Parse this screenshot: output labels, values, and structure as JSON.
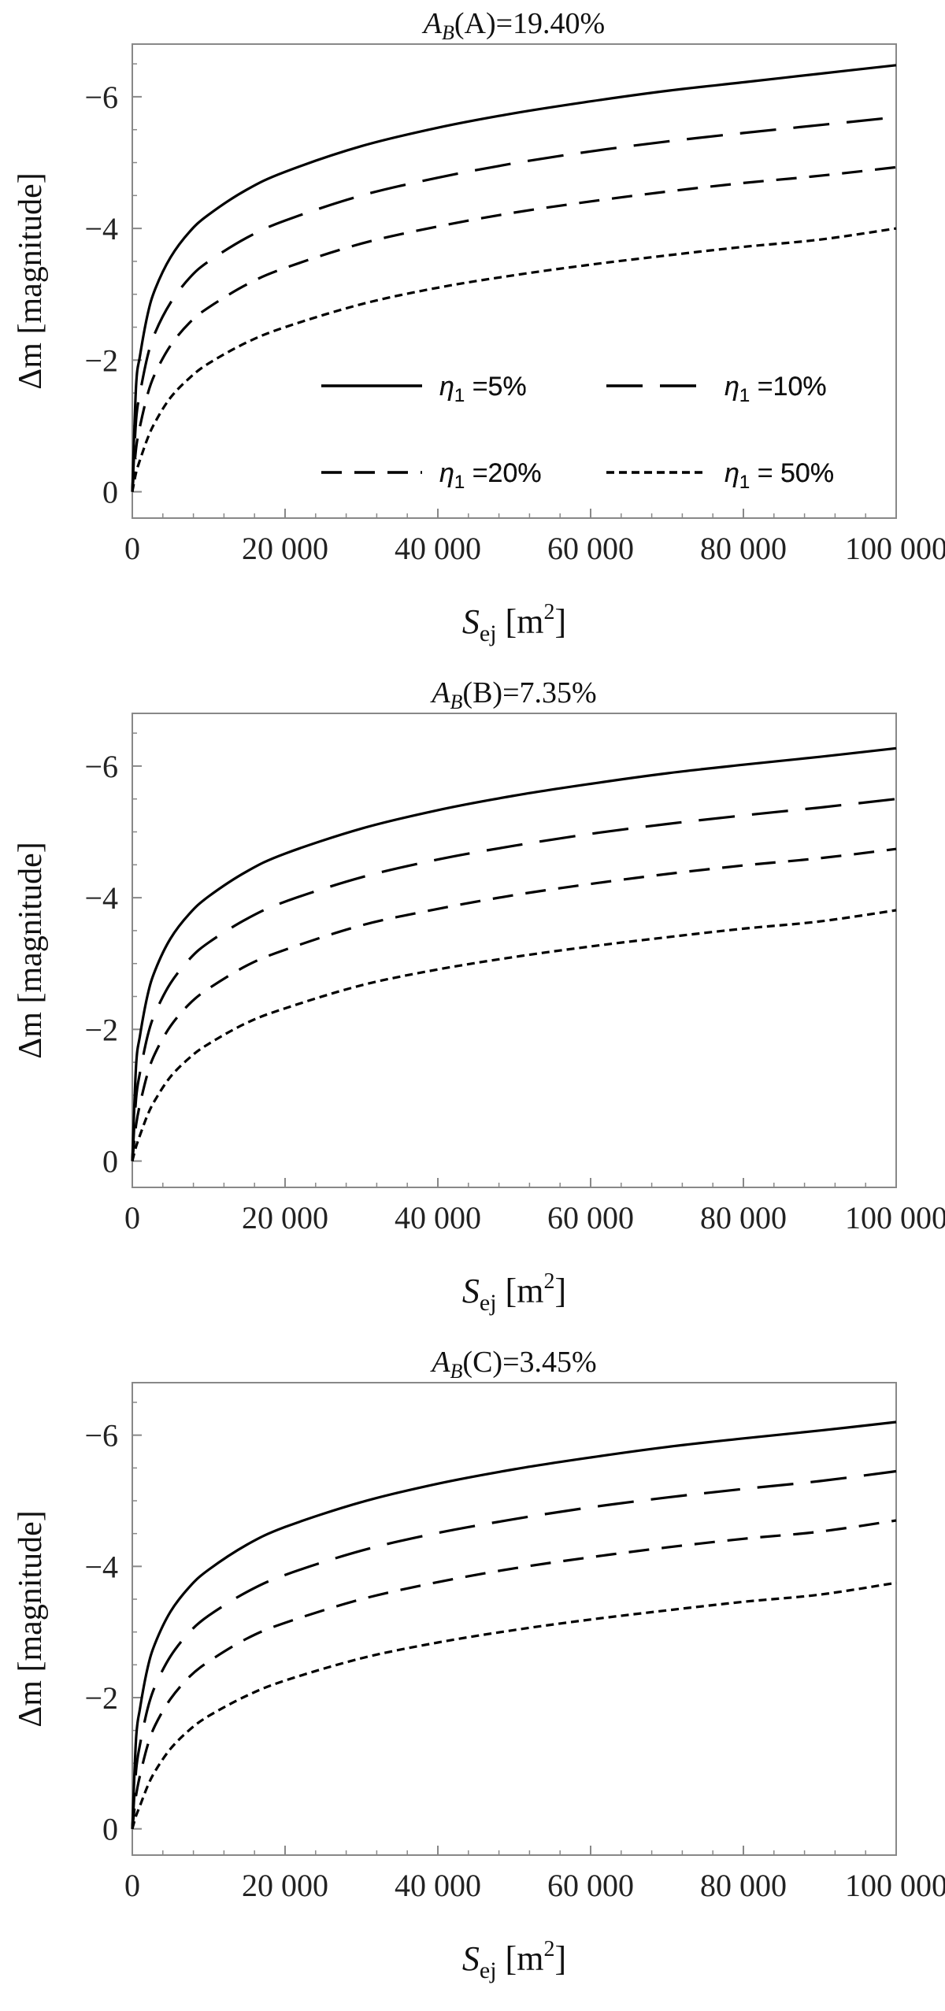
{
  "chart_data": [
    {
      "type": "line",
      "title": {
        "prefix": "A",
        "prefix_sub": "B",
        "rest": "(A)=19.40%"
      },
      "xlabel": {
        "main": "S",
        "sub": "ej",
        "unit": "[m",
        "unit_sup": "2",
        "unit_close": "]"
      },
      "ylabel": "Δm [magnitude]",
      "xlim": [
        0,
        100000
      ],
      "ylim": [
        0.4,
        -6.8
      ],
      "y_reversed": true,
      "x_ticks": [
        {
          "v": 0,
          "label": "0"
        },
        {
          "v": 20000,
          "label": "20 000"
        },
        {
          "v": 40000,
          "label": "40 000"
        },
        {
          "v": 60000,
          "label": "60 000"
        },
        {
          "v": 80000,
          "label": "80 000"
        },
        {
          "v": 100000,
          "label": "100 000"
        }
      ],
      "y_ticks": [
        {
          "v": 0,
          "label": "0"
        },
        {
          "v": -2,
          "label": "−2"
        },
        {
          "v": -4,
          "label": "−4"
        },
        {
          "v": -6,
          "label": "−6"
        }
      ],
      "grid": false,
      "legend_position": "bottom-right",
      "x": [
        0,
        500,
        1000,
        2000,
        3000,
        5000,
        7500,
        10000,
        15000,
        20000,
        30000,
        40000,
        50000,
        60000,
        70000,
        80000,
        90000,
        100000
      ],
      "series": [
        {
          "name": {
            "sym": "η",
            "sub": "1",
            "text": " =5%"
          },
          "style": "solid",
          "values": [
            0,
            -1.61,
            -2.06,
            -2.69,
            -3.08,
            -3.56,
            -3.95,
            -4.21,
            -4.59,
            -4.86,
            -5.25,
            -5.53,
            -5.75,
            -5.93,
            -6.09,
            -6.22,
            -6.35,
            -6.48
          ]
        },
        {
          "name": {
            "sym": "η",
            "sub": "1",
            "text": " =10%"
          },
          "style": "longdash",
          "values": [
            0,
            -1.09,
            -1.49,
            -2.06,
            -2.42,
            -2.87,
            -3.25,
            -3.5,
            -3.86,
            -4.12,
            -4.5,
            -4.77,
            -4.99,
            -5.17,
            -5.32,
            -5.45,
            -5.57,
            -5.69
          ]
        },
        {
          "name": {
            "sym": "η",
            "sub": "1",
            "text": " =20%"
          },
          "style": "dash",
          "values": [
            0,
            -0.66,
            -0.99,
            -1.48,
            -1.8,
            -2.22,
            -2.57,
            -2.8,
            -3.15,
            -3.4,
            -3.77,
            -4.03,
            -4.24,
            -4.41,
            -4.56,
            -4.69,
            -4.8,
            -4.93
          ]
        },
        {
          "name": {
            "sym": "η",
            "sub": "1",
            "text": " = 50%"
          },
          "style": "shortdash",
          "values": [
            0,
            -0.29,
            -0.48,
            -0.81,
            -1.06,
            -1.43,
            -1.73,
            -1.95,
            -2.27,
            -2.5,
            -2.85,
            -3.1,
            -3.29,
            -3.45,
            -3.59,
            -3.72,
            -3.83,
            -4.0
          ]
        }
      ]
    },
    {
      "type": "line",
      "title": {
        "prefix": "A",
        "prefix_sub": "B",
        "rest": "(B)=7.35%"
      },
      "xlabel": {
        "main": "S",
        "sub": "ej",
        "unit": "[m",
        "unit_sup": "2",
        "unit_close": "]"
      },
      "ylabel": "Δm [magnitude]",
      "xlim": [
        0,
        100000
      ],
      "ylim": [
        0.4,
        -6.8
      ],
      "y_reversed": true,
      "x_ticks": [
        {
          "v": 0,
          "label": "0"
        },
        {
          "v": 20000,
          "label": "20 000"
        },
        {
          "v": 40000,
          "label": "40 000"
        },
        {
          "v": 60000,
          "label": "60 000"
        },
        {
          "v": 80000,
          "label": "80 000"
        },
        {
          "v": 100000,
          "label": "100 000"
        }
      ],
      "y_ticks": [
        {
          "v": 0,
          "label": "0"
        },
        {
          "v": -2,
          "label": "−2"
        },
        {
          "v": -4,
          "label": "−4"
        },
        {
          "v": -6,
          "label": "−6"
        }
      ],
      "grid": false,
      "legend_position": "bottom-right",
      "x": [
        0,
        500,
        1000,
        2000,
        3000,
        5000,
        7500,
        10000,
        15000,
        20000,
        30000,
        40000,
        50000,
        60000,
        70000,
        80000,
        90000,
        100000
      ],
      "series": [
        {
          "name": {
            "sym": "η",
            "sub": "1",
            "text": " =5%"
          },
          "style": "solid",
          "values": [
            0,
            -1.45,
            -1.9,
            -2.52,
            -2.9,
            -3.38,
            -3.76,
            -4.02,
            -4.4,
            -4.67,
            -5.05,
            -5.33,
            -5.55,
            -5.73,
            -5.89,
            -6.02,
            -6.14,
            -6.27
          ]
        },
        {
          "name": {
            "sym": "η",
            "sub": "1",
            "text": " =10%"
          },
          "style": "longdash",
          "values": [
            0,
            -0.95,
            -1.34,
            -1.9,
            -2.25,
            -2.7,
            -3.07,
            -3.32,
            -3.68,
            -3.94,
            -4.31,
            -4.58,
            -4.79,
            -4.97,
            -5.12,
            -5.25,
            -5.37,
            -5.5
          ]
        },
        {
          "name": {
            "sym": "η",
            "sub": "1",
            "text": " =20%"
          },
          "style": "dash",
          "values": [
            0,
            -0.55,
            -0.86,
            -1.33,
            -1.64,
            -2.05,
            -2.39,
            -2.62,
            -2.97,
            -3.21,
            -3.58,
            -3.83,
            -4.04,
            -4.21,
            -4.36,
            -4.49,
            -4.6,
            -4.74
          ]
        },
        {
          "name": {
            "sym": "η",
            "sub": "1",
            "text": " = 50%"
          },
          "style": "shortdash",
          "values": [
            0,
            -0.22,
            -0.39,
            -0.7,
            -0.93,
            -1.28,
            -1.57,
            -1.78,
            -2.1,
            -2.32,
            -2.67,
            -2.91,
            -3.1,
            -3.26,
            -3.4,
            -3.53,
            -3.64,
            -3.81
          ]
        }
      ]
    },
    {
      "type": "line",
      "title": {
        "prefix": "A",
        "prefix_sub": "B",
        "rest": "(C)=3.45%"
      },
      "xlabel": {
        "main": "S",
        "sub": "ej",
        "unit": "[m",
        "unit_sup": "2",
        "unit_close": "]"
      },
      "ylabel": "Δm [magnitude]",
      "xlim": [
        0,
        100000
      ],
      "ylim": [
        0.4,
        -6.8
      ],
      "y_reversed": true,
      "x_ticks": [
        {
          "v": 0,
          "label": "0"
        },
        {
          "v": 20000,
          "label": "20 000"
        },
        {
          "v": 40000,
          "label": "40 000"
        },
        {
          "v": 60000,
          "label": "60 000"
        },
        {
          "v": 80000,
          "label": "80 000"
        },
        {
          "v": 100000,
          "label": "100 000"
        }
      ],
      "y_ticks": [
        {
          "v": 0,
          "label": "0"
        },
        {
          "v": -2,
          "label": "−2"
        },
        {
          "v": -4,
          "label": "−4"
        },
        {
          "v": -6,
          "label": "−6"
        }
      ],
      "grid": false,
      "legend_position": "bottom-right",
      "x": [
        0,
        500,
        1000,
        2000,
        3000,
        5000,
        7500,
        10000,
        15000,
        20000,
        30000,
        40000,
        50000,
        60000,
        70000,
        80000,
        90000,
        100000
      ],
      "series": [
        {
          "name": {
            "sym": "η",
            "sub": "1",
            "text": " =5%"
          },
          "style": "solid",
          "values": [
            0,
            -1.38,
            -1.83,
            -2.45,
            -2.83,
            -3.31,
            -3.69,
            -3.95,
            -4.33,
            -4.6,
            -4.98,
            -5.26,
            -5.48,
            -5.66,
            -5.82,
            -5.95,
            -6.07,
            -6.2
          ]
        },
        {
          "name": {
            "sym": "η",
            "sub": "1",
            "text": " =10%"
          },
          "style": "longdash",
          "values": [
            0,
            -0.89,
            -1.28,
            -1.83,
            -2.18,
            -2.63,
            -3.0,
            -3.25,
            -3.61,
            -3.87,
            -4.24,
            -4.51,
            -4.72,
            -4.9,
            -5.05,
            -5.18,
            -5.3,
            -5.45
          ]
        },
        {
          "name": {
            "sym": "η",
            "sub": "1",
            "text": " =20%"
          },
          "style": "dash",
          "values": [
            0,
            -0.51,
            -0.81,
            -1.27,
            -1.58,
            -1.98,
            -2.32,
            -2.55,
            -2.9,
            -3.14,
            -3.5,
            -3.76,
            -3.97,
            -4.14,
            -4.29,
            -4.42,
            -4.53,
            -4.7
          ]
        },
        {
          "name": {
            "sym": "η",
            "sub": "1",
            "text": " = 50%"
          },
          "style": "shortdash",
          "values": [
            0,
            -0.2,
            -0.35,
            -0.65,
            -0.88,
            -1.22,
            -1.51,
            -1.72,
            -2.03,
            -2.26,
            -2.6,
            -2.84,
            -3.03,
            -3.19,
            -3.33,
            -3.46,
            -3.57,
            -3.75
          ]
        }
      ]
    }
  ]
}
